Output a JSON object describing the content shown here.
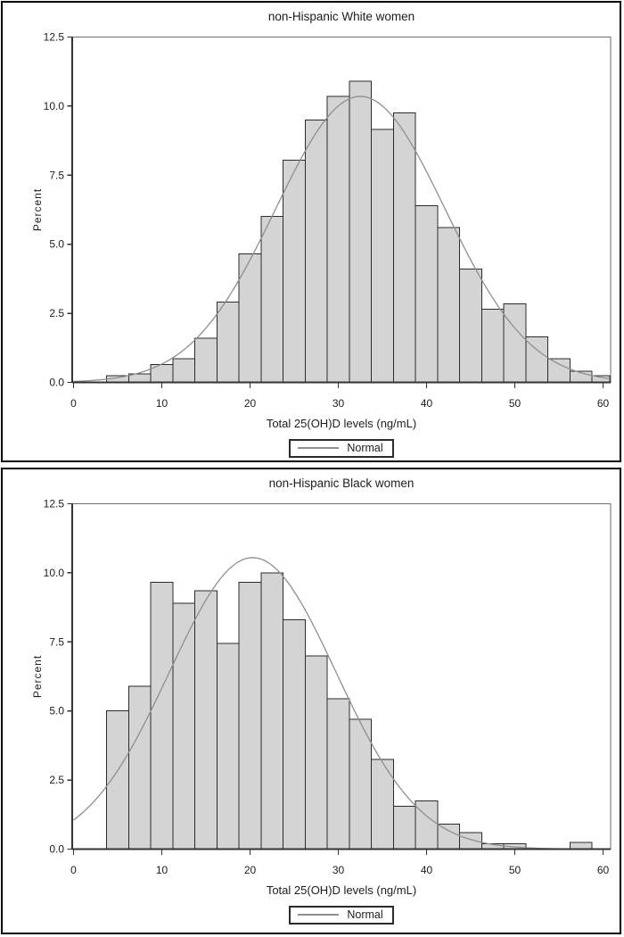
{
  "figure": {
    "description": "Two stacked SAS-style histograms of total 25(OH)D levels with fitted normal curves",
    "panel_count": 2
  },
  "colors": {
    "background": "#ffffff",
    "panel_border": "#000000",
    "bar_fill": "#d4d4d4",
    "bar_stroke": "#2b2b2b",
    "curve": "#8f8f8f",
    "frame": "#6e6e6e",
    "axis": "#333333",
    "text": "#1d1d1d"
  },
  "chart_data": [
    {
      "type": "bar",
      "subtype": "histogram-with-normal-curve",
      "title": "non-Hispanic White women",
      "xlabel": "Total 25(OH)D levels (ng/mL)",
      "ylabel": "Percent",
      "legend": "Normal",
      "legend_position": "bottom-center",
      "grid": false,
      "xlim": [
        0,
        60.75
      ],
      "ylim": [
        0,
        12.5
      ],
      "xticks": [
        0,
        10,
        20,
        30,
        40,
        50,
        60
      ],
      "ytick_values": [
        0,
        2.5,
        5,
        7.5,
        10,
        12.5
      ],
      "ytick_labels": [
        "0.0",
        "2.5",
        "5.0",
        "7.5",
        "10.0",
        "12.5"
      ],
      "bin_width": 2.5,
      "bin_midpoints": [
        5,
        7.5,
        10,
        12.5,
        15,
        17.5,
        20,
        22.5,
        25,
        27.5,
        30,
        32.5,
        35,
        37.5,
        40,
        42.5,
        45,
        47.5,
        50,
        52.5,
        55,
        57.5,
        60
      ],
      "percent_values": [
        0.25,
        0.3,
        0.65,
        0.85,
        1.6,
        2.9,
        4.65,
        6.0,
        8.05,
        9.5,
        10.35,
        10.9,
        9.15,
        9.75,
        6.4,
        5.6,
        4.1,
        2.65,
        2.85,
        1.65,
        0.85,
        0.4,
        0.25
      ],
      "normal_curve": {
        "mean": 32.5,
        "sd": 9.6,
        "peak_percent": 10.35
      }
    },
    {
      "type": "bar",
      "subtype": "histogram-with-normal-curve",
      "title": "non-Hispanic Black women",
      "xlabel": "Total 25(OH)D levels (ng/mL)",
      "ylabel": "Percent",
      "legend": "Normal",
      "legend_position": "bottom-center",
      "grid": false,
      "xlim": [
        0,
        60.75
      ],
      "ylim": [
        0,
        12.5
      ],
      "xticks": [
        0,
        10,
        20,
        30,
        40,
        50,
        60
      ],
      "ytick_values": [
        0,
        2.5,
        5,
        7.5,
        10,
        12.5
      ],
      "ytick_labels": [
        "0.0",
        "2.5",
        "5.0",
        "7.5",
        "10.0",
        "12.5"
      ],
      "bin_width": 2.5,
      "bin_midpoints": [
        5,
        7.5,
        10,
        12.5,
        15,
        17.5,
        20,
        22.5,
        25,
        27.5,
        30,
        32.5,
        35,
        37.5,
        40,
        42.5,
        45,
        47.5,
        50,
        52.5,
        55,
        57.5,
        60
      ],
      "percent_values": [
        5.0,
        5.9,
        9.65,
        8.9,
        9.35,
        7.45,
        9.65,
        10.0,
        8.3,
        7.0,
        5.45,
        4.7,
        3.25,
        1.55,
        1.75,
        0.9,
        0.6,
        0.2,
        0.2,
        0,
        0,
        0.25,
        0
      ],
      "normal_curve": {
        "mean": 20.3,
        "sd": 9.45,
        "peak_percent": 10.55
      }
    }
  ]
}
